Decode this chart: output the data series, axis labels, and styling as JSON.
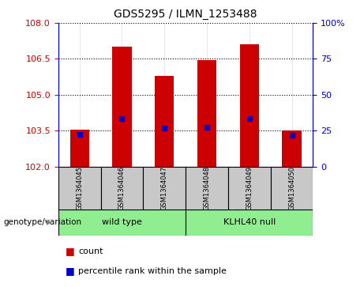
{
  "title": "GDS5295 / ILMN_1253488",
  "samples": [
    "GSM1364045",
    "GSM1364046",
    "GSM1364047",
    "GSM1364048",
    "GSM1364049",
    "GSM1364050"
  ],
  "count_values": [
    103.55,
    107.0,
    105.8,
    106.45,
    107.1,
    103.5
  ],
  "percentile_values": [
    103.35,
    104.0,
    103.6,
    103.65,
    104.0,
    103.3
  ],
  "ymin": 102,
  "ymax": 108,
  "yticks_left": [
    102,
    103.5,
    105,
    106.5,
    108
  ],
  "yticks_right": [
    0,
    25,
    50,
    75,
    100
  ],
  "group_labels": [
    "wild type",
    "KLHL40 null"
  ],
  "group_colors": [
    "#90EE90",
    "#90EE90"
  ],
  "group_ranges": [
    [
      0,
      3
    ],
    [
      3,
      6
    ]
  ],
  "bar_color": "#CC0000",
  "dot_color": "#0000CC",
  "sample_bg_color": "#C8C8C8",
  "plot_bg": "#FFFFFF",
  "left_axis_color": "#CC0000",
  "right_axis_color": "#0000CC",
  "genotype_label": "genotype/variation",
  "legend_count": "count",
  "legend_percentile": "percentile rank within the sample",
  "bar_width": 0.45
}
